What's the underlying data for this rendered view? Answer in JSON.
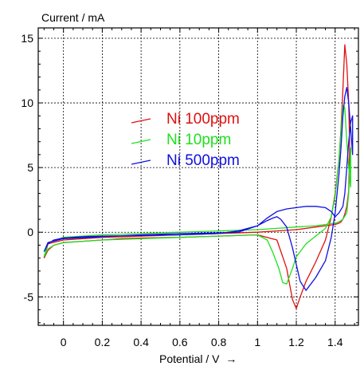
{
  "chart_data": {
    "type": "line",
    "ylabel": "Current / mA",
    "xlabel": "Potential / V",
    "xlabel_arrow": "→",
    "xlim": [
      -0.13,
      1.52
    ],
    "ylim": [
      -7.2,
      15.8
    ],
    "xticks": [
      0,
      0.2,
      0.4,
      0.6,
      0.8,
      1,
      1.2,
      1.4
    ],
    "xtick_labels": [
      "0",
      "0.2",
      "0.4",
      "0.6",
      "0.8",
      "1",
      "1.2",
      "1.4"
    ],
    "yticks": [
      -5,
      0,
      5,
      10,
      15
    ],
    "ytick_labels": [
      "-5",
      "0",
      "5",
      "10",
      "15"
    ],
    "grid": true,
    "legend_position": "center-left",
    "series": [
      {
        "name": "Ni 100ppm",
        "color": "#e01010",
        "x": [
          -0.1,
          -0.08,
          -0.05,
          0.0,
          0.1,
          0.2,
          0.3,
          0.4,
          0.6,
          0.8,
          1.0,
          1.1,
          1.15,
          1.18,
          1.2,
          1.22,
          1.25,
          1.3,
          1.35,
          1.38,
          1.4,
          1.42,
          1.43,
          1.44,
          1.45,
          1.46,
          1.47,
          1.475,
          1.47,
          1.46,
          1.45,
          1.44,
          1.43,
          1.42,
          1.4,
          1.35,
          1.3,
          1.25,
          1.2,
          1.1,
          1.0,
          0.8,
          0.6,
          0.4,
          0.2,
          0.0,
          -0.08,
          -0.1
        ],
        "y": [
          -2.0,
          -1.4,
          -1.0,
          -0.8,
          -0.7,
          -0.6,
          -0.5,
          -0.45,
          -0.4,
          -0.3,
          -0.2,
          -0.6,
          -2.8,
          -5.2,
          -5.9,
          -5.0,
          -3.8,
          -2.3,
          -0.6,
          1.2,
          3.0,
          5.6,
          8.0,
          11.0,
          14.5,
          13.0,
          10.0,
          6.5,
          3.2,
          2.0,
          1.4,
          1.0,
          0.8,
          0.7,
          0.6,
          0.5,
          0.4,
          0.3,
          0.2,
          0.1,
          0.0,
          -0.1,
          -0.2,
          -0.3,
          -0.4,
          -0.6,
          -0.9,
          -2.0
        ]
      },
      {
        "name": "Ni 10ppm",
        "color": "#20e020",
        "x": [
          -0.1,
          -0.08,
          -0.05,
          0.0,
          0.1,
          0.2,
          0.4,
          0.6,
          0.8,
          1.0,
          1.05,
          1.08,
          1.11,
          1.13,
          1.15,
          1.18,
          1.2,
          1.25,
          1.3,
          1.35,
          1.38,
          1.4,
          1.42,
          1.43,
          1.44,
          1.45,
          1.46,
          1.47,
          1.48,
          1.48,
          1.47,
          1.46,
          1.44,
          1.42,
          1.4,
          1.35,
          1.3,
          1.2,
          1.1,
          1.0,
          0.8,
          0.6,
          0.4,
          0.2,
          0.0,
          -0.08,
          -0.1
        ],
        "y": [
          -1.9,
          -1.3,
          -1.0,
          -0.8,
          -0.7,
          -0.6,
          -0.5,
          -0.4,
          -0.3,
          -0.2,
          -0.6,
          -1.6,
          -2.8,
          -3.9,
          -4.0,
          -2.8,
          -1.9,
          -0.9,
          -0.3,
          0.3,
          1.2,
          2.8,
          5.6,
          7.8,
          9.8,
          9.6,
          7.0,
          5.0,
          3.5,
          6.5,
          3.0,
          1.5,
          1.0,
          0.8,
          0.7,
          0.6,
          0.5,
          0.4,
          0.3,
          0.2,
          0.1,
          0.0,
          -0.1,
          -0.2,
          -0.4,
          -0.8,
          -1.9
        ]
      },
      {
        "name": "Ni 500ppm",
        "color": "#1010e0",
        "x": [
          -0.1,
          -0.08,
          -0.05,
          0.0,
          0.1,
          0.2,
          0.4,
          0.6,
          0.8,
          0.9,
          1.0,
          1.05,
          1.08,
          1.1,
          1.12,
          1.15,
          1.18,
          1.2,
          1.22,
          1.25,
          1.3,
          1.35,
          1.38,
          1.4,
          1.42,
          1.43,
          1.44,
          1.45,
          1.46,
          1.47,
          1.48,
          1.49,
          1.49,
          1.48,
          1.47,
          1.46,
          1.45,
          1.44,
          1.42,
          1.4,
          1.38,
          1.35,
          1.3,
          1.25,
          1.2,
          1.15,
          1.1,
          1.05,
          1.0,
          0.9,
          0.8,
          0.6,
          0.4,
          0.2,
          0.0,
          -0.08,
          -0.1
        ],
        "y": [
          -1.5,
          -0.9,
          -0.6,
          -0.45,
          -0.35,
          -0.3,
          -0.25,
          -0.2,
          -0.1,
          0.1,
          0.5,
          0.9,
          1.1,
          1.2,
          1.0,
          0.4,
          -1.2,
          -2.5,
          -3.8,
          -4.5,
          -3.5,
          -2.2,
          -0.4,
          1.5,
          4.5,
          6.5,
          9.0,
          10.5,
          11.2,
          10.0,
          8.0,
          6.0,
          9.0,
          8.5,
          7.0,
          5.0,
          3.0,
          2.0,
          1.5,
          1.2,
          1.6,
          1.9,
          2.0,
          2.0,
          1.9,
          1.8,
          1.6,
          1.1,
          0.5,
          0.0,
          -0.05,
          -0.1,
          -0.2,
          -0.35,
          -0.5,
          -0.8,
          -1.5
        ]
      }
    ]
  }
}
